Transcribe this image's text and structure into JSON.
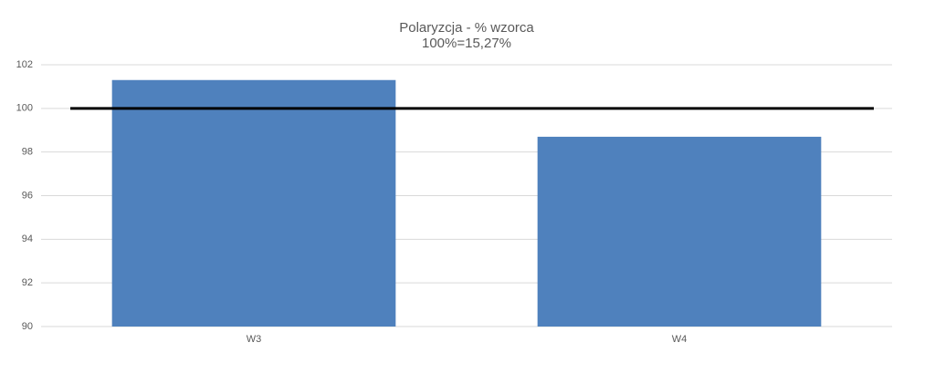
{
  "chart_data": {
    "type": "bar",
    "title": "Polaryzcja - % wzorca",
    "subtitle": "100%=15,27%",
    "categories": [
      "W3",
      "W4"
    ],
    "values": [
      101.3,
      98.7
    ],
    "color": "#4f81bd",
    "ylim": [
      90,
      102
    ],
    "yticks": [
      90,
      92,
      94,
      96,
      98,
      100,
      102
    ],
    "grid": true,
    "reference_line": {
      "value": 100,
      "color": "#000000"
    }
  }
}
